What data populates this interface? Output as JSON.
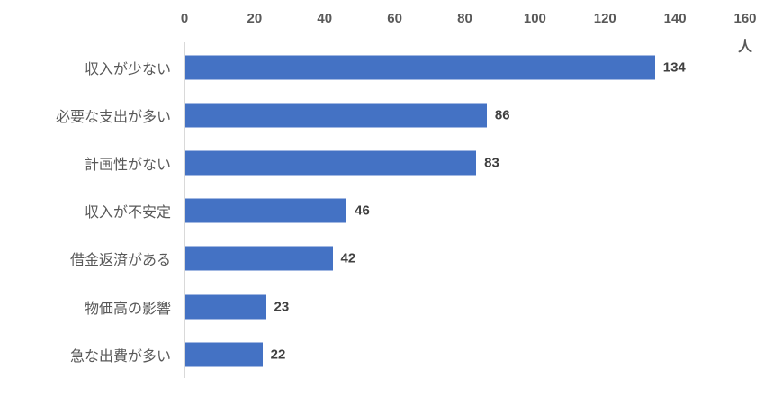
{
  "chart_data": {
    "type": "bar",
    "orientation": "horizontal",
    "title": "",
    "xlabel": "",
    "ylabel": "",
    "unit_label": "人",
    "categories": [
      "収入が少ない",
      "必要な支出が多い",
      "計画性がない",
      "収入が不安定",
      "借金返済がある",
      "物価高の影響",
      "急な出費が多い"
    ],
    "values": [
      134,
      86,
      83,
      46,
      42,
      23,
      22
    ],
    "xlim": [
      0,
      160
    ],
    "x_ticks": [
      0,
      20,
      40,
      60,
      80,
      100,
      120,
      140,
      160
    ],
    "axis_position": "top",
    "grid": false,
    "legend": "none",
    "data_labels": true,
    "colors": {
      "bar": "#4472c4",
      "axis_line": "#d9d9d9",
      "tick_text": "#595959",
      "category_text": "#595959",
      "value_text": "#404040",
      "background": "#ffffff"
    }
  }
}
